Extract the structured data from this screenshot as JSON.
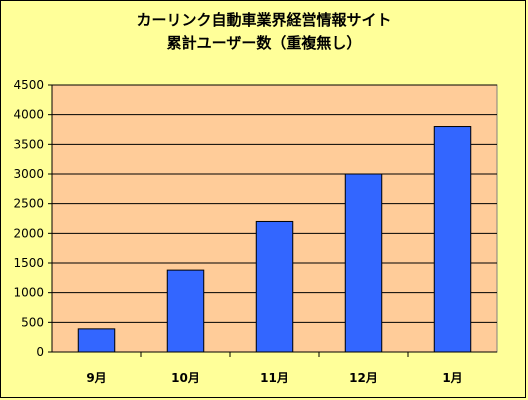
{
  "chart_data": {
    "type": "bar",
    "title": "カーリンク自動車業界経営情報サイト",
    "subtitle": "累計ユーザー数（重複無し）",
    "categories": [
      "9月",
      "10月",
      "11月",
      "12月",
      "1月"
    ],
    "values": [
      390,
      1380,
      2200,
      3000,
      3800
    ],
    "ylim": [
      0,
      4500
    ],
    "yticks": [
      0,
      500,
      1000,
      1500,
      2000,
      2500,
      3000,
      3500,
      4000,
      4500
    ],
    "xlabel": "",
    "ylabel": "",
    "grid": true,
    "legend": "none",
    "colors": {
      "background": "#ffff99",
      "plot_area": "#ffcc99",
      "bar_fill": "#3366ff",
      "bar_stroke": "#000000",
      "grid": "#000000"
    }
  }
}
